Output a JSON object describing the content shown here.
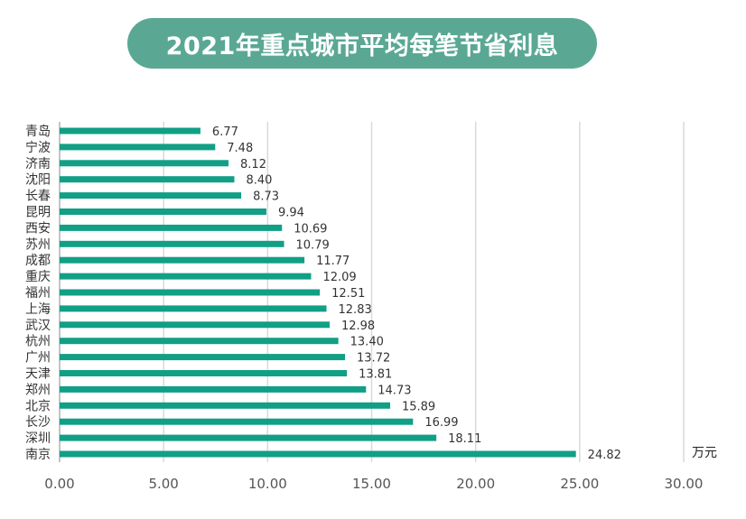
{
  "title": "2021年重点城市平均每笔节省利息",
  "colors": {
    "accent": "#5aa894",
    "bar": "#119f86",
    "grid": "#d9d9d9"
  },
  "chart_data": {
    "type": "bar",
    "orientation": "horizontal",
    "title": "2021年重点城市平均每笔节省利息",
    "unit_label": "万元",
    "categories": [
      "青岛",
      "宁波",
      "济南",
      "沈阳",
      "长春",
      "昆明",
      "西安",
      "苏州",
      "成都",
      "重庆",
      "福州",
      "上海",
      "武汉",
      "杭州",
      "广州",
      "天津",
      "郑州",
      "北京",
      "长沙",
      "深圳",
      "南京"
    ],
    "values": [
      6.77,
      7.48,
      8.12,
      8.4,
      8.73,
      9.94,
      10.69,
      10.79,
      11.77,
      12.09,
      12.51,
      12.83,
      12.98,
      13.4,
      13.72,
      13.81,
      14.73,
      15.89,
      16.99,
      18.11,
      24.82
    ],
    "value_labels": [
      "6.77",
      "7.48",
      "8.12",
      "8.40",
      "8.73",
      "9.94",
      "10.69",
      "10.79",
      "11.77",
      "12.09",
      "12.51",
      "12.83",
      "12.98",
      "13.40",
      "13.72",
      "13.81",
      "14.73",
      "15.89",
      "16.99",
      "18.11",
      "24.82"
    ],
    "xlim": [
      0,
      30
    ],
    "xticks": [
      "0.00",
      "5.00",
      "10.00",
      "15.00",
      "20.00",
      "25.00",
      "30.00"
    ],
    "grid": true
  }
}
